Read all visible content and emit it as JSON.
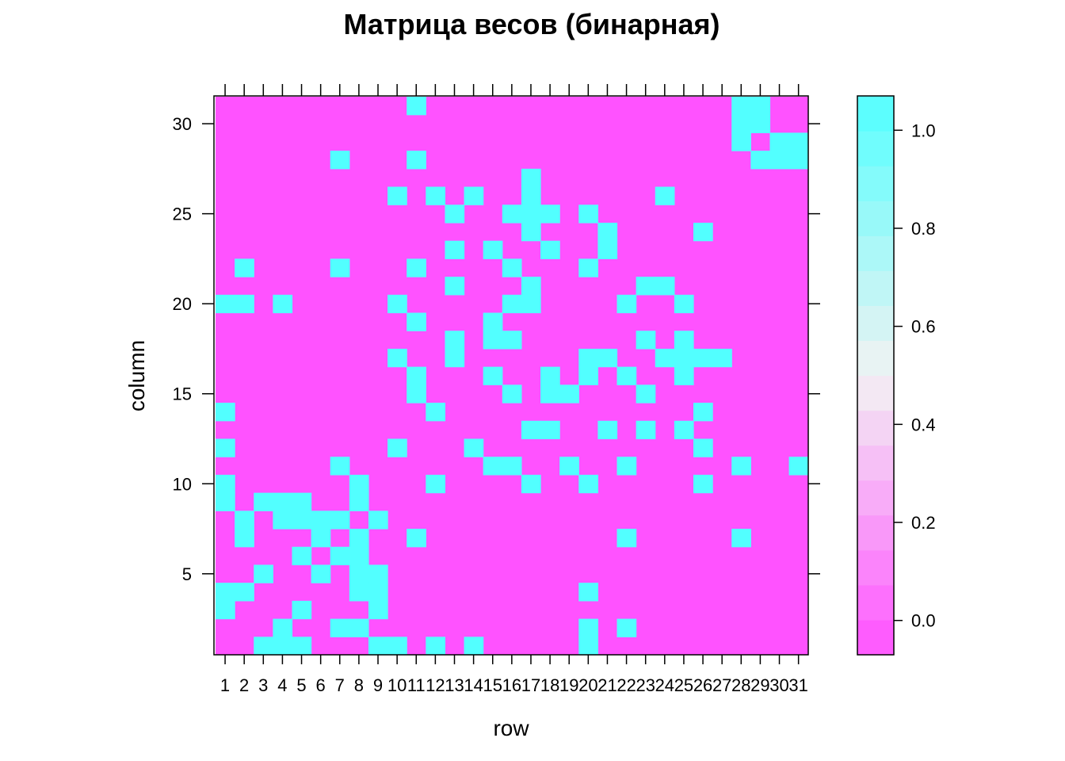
{
  "chart_data": {
    "type": "heatmap",
    "title": "Матрица весов (бинарная)",
    "xlabel": "row",
    "ylabel": "column",
    "x_categories": [
      "1",
      "2",
      "3",
      "4",
      "5",
      "6",
      "7",
      "8",
      "9",
      "10",
      "11",
      "12",
      "13",
      "14",
      "15",
      "16",
      "17",
      "18",
      "19",
      "20",
      "21",
      "22",
      "23",
      "24",
      "25",
      "26",
      "27",
      "28",
      "29",
      "30",
      "31"
    ],
    "y_tick_labels": [
      "5",
      "10",
      "15",
      "20",
      "25",
      "30"
    ],
    "y_ticks": [
      5,
      10,
      15,
      20,
      25,
      30
    ],
    "y_range": [
      1,
      31
    ],
    "value_range": [
      0,
      1
    ],
    "colorbar": {
      "tick_labels": [
        "0.0",
        "0.2",
        "0.4",
        "0.6",
        "0.8",
        "1.0"
      ],
      "ticks": [
        0,
        0.2,
        0.4,
        0.6,
        0.8,
        1.0
      ],
      "range": [
        -0.07,
        1.07
      ],
      "low_color": "#FF52FF",
      "mid_color": "#F2F2F2",
      "high_color": "#52FFFF"
    },
    "cells_value_1": [
      [
        1,
        3
      ],
      [
        1,
        4
      ],
      [
        1,
        9
      ],
      [
        1,
        10
      ],
      [
        1,
        12
      ],
      [
        1,
        14
      ],
      [
        1,
        20
      ],
      [
        2,
        4
      ],
      [
        2,
        7
      ],
      [
        2,
        8
      ],
      [
        2,
        20
      ],
      [
        2,
        22
      ],
      [
        3,
        1
      ],
      [
        3,
        5
      ],
      [
        3,
        9
      ],
      [
        4,
        1
      ],
      [
        4,
        2
      ],
      [
        4,
        8
      ],
      [
        4,
        9
      ],
      [
        4,
        20
      ],
      [
        5,
        1
      ],
      [
        5,
        3
      ],
      [
        5,
        6
      ],
      [
        5,
        8
      ],
      [
        5,
        9
      ],
      [
        6,
        5
      ],
      [
        6,
        7
      ],
      [
        6,
        8
      ],
      [
        7,
        2
      ],
      [
        7,
        6
      ],
      [
        7,
        8
      ],
      [
        7,
        11
      ],
      [
        7,
        22
      ],
      [
        7,
        28
      ],
      [
        8,
        2
      ],
      [
        8,
        4
      ],
      [
        8,
        5
      ],
      [
        8,
        6
      ],
      [
        8,
        7
      ],
      [
        8,
        9
      ],
      [
        8,
        10
      ],
      [
        9,
        1
      ],
      [
        9,
        3
      ],
      [
        9,
        4
      ],
      [
        9,
        5
      ],
      [
        9,
        8
      ],
      [
        10,
        1
      ],
      [
        10,
        12
      ],
      [
        10,
        17
      ],
      [
        10,
        20
      ],
      [
        10,
        26
      ],
      [
        11,
        7
      ],
      [
        11,
        15
      ],
      [
        11,
        16
      ],
      [
        11,
        19
      ],
      [
        11,
        22
      ],
      [
        11,
        28
      ],
      [
        11,
        31
      ],
      [
        12,
        1
      ],
      [
        12,
        10
      ],
      [
        12,
        14
      ],
      [
        12,
        26
      ],
      [
        13,
        17
      ],
      [
        13,
        18
      ],
      [
        13,
        21
      ],
      [
        13,
        23
      ],
      [
        13,
        25
      ],
      [
        14,
        1
      ],
      [
        14,
        12
      ],
      [
        14,
        26
      ],
      [
        15,
        11
      ],
      [
        15,
        16
      ],
      [
        15,
        18
      ],
      [
        15,
        19
      ],
      [
        15,
        23
      ],
      [
        16,
        11
      ],
      [
        16,
        15
      ],
      [
        16,
        18
      ],
      [
        16,
        20
      ],
      [
        16,
        22
      ],
      [
        16,
        25
      ],
      [
        17,
        10
      ],
      [
        17,
        13
      ],
      [
        17,
        20
      ],
      [
        17,
        21
      ],
      [
        17,
        24
      ],
      [
        17,
        25
      ],
      [
        17,
        26
      ],
      [
        17,
        27
      ],
      [
        18,
        13
      ],
      [
        18,
        15
      ],
      [
        18,
        16
      ],
      [
        18,
        23
      ],
      [
        18,
        25
      ],
      [
        19,
        11
      ],
      [
        19,
        15
      ],
      [
        20,
        1
      ],
      [
        20,
        2
      ],
      [
        20,
        4
      ],
      [
        20,
        10
      ],
      [
        20,
        16
      ],
      [
        20,
        17
      ],
      [
        20,
        22
      ],
      [
        20,
        25
      ],
      [
        21,
        13
      ],
      [
        21,
        17
      ],
      [
        21,
        23
      ],
      [
        21,
        24
      ],
      [
        22,
        2
      ],
      [
        22,
        7
      ],
      [
        22,
        11
      ],
      [
        22,
        16
      ],
      [
        22,
        20
      ],
      [
        23,
        13
      ],
      [
        23,
        15
      ],
      [
        23,
        18
      ],
      [
        23,
        21
      ],
      [
        24,
        17
      ],
      [
        24,
        21
      ],
      [
        24,
        26
      ],
      [
        25,
        13
      ],
      [
        25,
        16
      ],
      [
        25,
        17
      ],
      [
        25,
        18
      ],
      [
        25,
        20
      ],
      [
        26,
        10
      ],
      [
        26,
        12
      ],
      [
        26,
        14
      ],
      [
        26,
        17
      ],
      [
        26,
        24
      ],
      [
        27,
        17
      ],
      [
        28,
        7
      ],
      [
        28,
        11
      ],
      [
        28,
        29
      ],
      [
        28,
        30
      ],
      [
        28,
        31
      ],
      [
        29,
        28
      ],
      [
        29,
        30
      ],
      [
        29,
        31
      ],
      [
        30,
        28
      ],
      [
        30,
        29
      ],
      [
        31,
        11
      ],
      [
        31,
        28
      ],
      [
        31,
        29
      ]
    ]
  }
}
